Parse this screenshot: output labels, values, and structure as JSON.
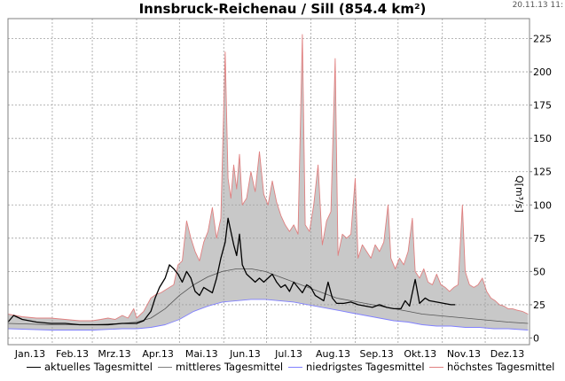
{
  "title": "Innsbruck-Reichenau / Sill (854.4 km²)",
  "timestamp": "20.11.13 11:",
  "colors": {
    "actual": "#000000",
    "mean": "#555555",
    "min": "#8080ff",
    "max": "#e08080",
    "band": "#c8c8c8",
    "grid": "#a0a0a0"
  },
  "chart_data": {
    "type": "line",
    "title": "Innsbruck-Reichenau / Sill (854.4 km²)",
    "ylabel": "Q[m³/s]",
    "xlabel": "",
    "ylim": [
      -5,
      240
    ],
    "yticks": [
      0,
      25,
      50,
      75,
      100,
      125,
      150,
      175,
      200,
      225
    ],
    "months": [
      "Jan.13",
      "Feb.13",
      "Mrz.13",
      "Apr.13",
      "Mai.13",
      "Jun.13",
      "Jul.13",
      "Aug.13",
      "Sep.13",
      "Okt.13",
      "Nov.13",
      "Dez.13"
    ],
    "legend_position": "bottom",
    "grid": true,
    "series": [
      {
        "name": "aktuelles Tagesmittel",
        "points": [
          [
            0,
            12
          ],
          [
            4,
            17
          ],
          [
            10,
            14
          ],
          [
            20,
            12
          ],
          [
            30,
            11
          ],
          [
            40,
            11
          ],
          [
            50,
            10
          ],
          [
            59,
            10
          ],
          [
            70,
            10
          ],
          [
            80,
            11
          ],
          [
            90,
            11
          ],
          [
            95,
            13
          ],
          [
            100,
            20
          ],
          [
            103,
            30
          ],
          [
            106,
            38
          ],
          [
            110,
            45
          ],
          [
            113,
            55
          ],
          [
            116,
            52
          ],
          [
            119,
            48
          ],
          [
            122,
            42
          ],
          [
            125,
            50
          ],
          [
            128,
            45
          ],
          [
            131,
            35
          ],
          [
            134,
            32
          ],
          [
            137,
            38
          ],
          [
            140,
            36
          ],
          [
            143,
            34
          ],
          [
            146,
            45
          ],
          [
            149,
            60
          ],
          [
            152,
            72
          ],
          [
            154,
            90
          ],
          [
            156,
            80
          ],
          [
            158,
            70
          ],
          [
            160,
            62
          ],
          [
            162,
            78
          ],
          [
            164,
            55
          ],
          [
            167,
            48
          ],
          [
            170,
            45
          ],
          [
            173,
            42
          ],
          [
            176,
            45
          ],
          [
            179,
            42
          ],
          [
            182,
            45
          ],
          [
            185,
            48
          ],
          [
            188,
            42
          ],
          [
            191,
            38
          ],
          [
            194,
            40
          ],
          [
            197,
            35
          ],
          [
            200,
            42
          ],
          [
            203,
            38
          ],
          [
            206,
            34
          ],
          [
            209,
            40
          ],
          [
            212,
            38
          ],
          [
            215,
            32
          ],
          [
            218,
            30
          ],
          [
            221,
            28
          ],
          [
            224,
            42
          ],
          [
            227,
            30
          ],
          [
            230,
            26
          ],
          [
            235,
            26
          ],
          [
            240,
            27
          ],
          [
            245,
            25
          ],
          [
            250,
            24
          ],
          [
            255,
            23
          ],
          [
            260,
            25
          ],
          [
            265,
            23
          ],
          [
            270,
            22
          ],
          [
            275,
            22
          ],
          [
            278,
            28
          ],
          [
            281,
            24
          ],
          [
            285,
            44
          ],
          [
            288,
            26
          ],
          [
            292,
            30
          ],
          [
            295,
            28
          ],
          [
            300,
            27
          ],
          [
            305,
            26
          ],
          [
            310,
            25
          ],
          [
            313,
            25
          ]
        ]
      },
      {
        "name": "mittleres Tagesmittel",
        "points": [
          [
            0,
            11
          ],
          [
            30,
            10
          ],
          [
            60,
            10
          ],
          [
            80,
            11
          ],
          [
            90,
            12
          ],
          [
            100,
            15
          ],
          [
            110,
            22
          ],
          [
            120,
            32
          ],
          [
            130,
            40
          ],
          [
            140,
            46
          ],
          [
            150,
            50
          ],
          [
            160,
            52
          ],
          [
            170,
            52
          ],
          [
            180,
            50
          ],
          [
            190,
            46
          ],
          [
            200,
            42
          ],
          [
            210,
            38
          ],
          [
            220,
            34
          ],
          [
            230,
            30
          ],
          [
            240,
            28
          ],
          [
            250,
            26
          ],
          [
            260,
            24
          ],
          [
            270,
            22
          ],
          [
            280,
            20
          ],
          [
            290,
            18
          ],
          [
            300,
            17
          ],
          [
            310,
            16
          ],
          [
            320,
            15
          ],
          [
            330,
            14
          ],
          [
            340,
            13
          ],
          [
            350,
            12
          ],
          [
            364,
            11
          ]
        ]
      },
      {
        "name": "niedrigstes Tagesmittel",
        "points": [
          [
            0,
            7
          ],
          [
            30,
            6
          ],
          [
            60,
            6
          ],
          [
            80,
            7
          ],
          [
            90,
            7
          ],
          [
            100,
            8
          ],
          [
            110,
            10
          ],
          [
            120,
            14
          ],
          [
            130,
            20
          ],
          [
            140,
            24
          ],
          [
            150,
            27
          ],
          [
            160,
            28
          ],
          [
            170,
            29
          ],
          [
            180,
            29
          ],
          [
            190,
            28
          ],
          [
            200,
            27
          ],
          [
            210,
            25
          ],
          [
            220,
            23
          ],
          [
            230,
            21
          ],
          [
            240,
            19
          ],
          [
            250,
            17
          ],
          [
            260,
            15
          ],
          [
            270,
            13
          ],
          [
            280,
            12
          ],
          [
            290,
            10
          ],
          [
            300,
            9
          ],
          [
            310,
            9
          ],
          [
            320,
            8
          ],
          [
            330,
            8
          ],
          [
            340,
            7
          ],
          [
            350,
            7
          ],
          [
            364,
            6
          ]
        ]
      },
      {
        "name": "höchstes Tagesmittel",
        "points": [
          [
            0,
            18
          ],
          [
            10,
            16
          ],
          [
            20,
            15
          ],
          [
            30,
            15
          ],
          [
            40,
            14
          ],
          [
            50,
            13
          ],
          [
            59,
            13
          ],
          [
            65,
            14
          ],
          [
            70,
            15
          ],
          [
            75,
            14
          ],
          [
            80,
            17
          ],
          [
            84,
            15
          ],
          [
            88,
            22
          ],
          [
            90,
            15
          ],
          [
            95,
            20
          ],
          [
            100,
            30
          ],
          [
            104,
            33
          ],
          [
            107,
            34
          ],
          [
            110,
            36
          ],
          [
            113,
            38
          ],
          [
            116,
            40
          ],
          [
            119,
            55
          ],
          [
            122,
            58
          ],
          [
            125,
            88
          ],
          [
            128,
            75
          ],
          [
            131,
            65
          ],
          [
            134,
            58
          ],
          [
            137,
            72
          ],
          [
            140,
            80
          ],
          [
            143,
            98
          ],
          [
            146,
            75
          ],
          [
            149,
            90
          ],
          [
            152,
            215
          ],
          [
            154,
            120
          ],
          [
            156,
            105
          ],
          [
            158,
            130
          ],
          [
            160,
            112
          ],
          [
            162,
            138
          ],
          [
            164,
            100
          ],
          [
            167,
            105
          ],
          [
            170,
            125
          ],
          [
            173,
            110
          ],
          [
            176,
            140
          ],
          [
            179,
            108
          ],
          [
            182,
            100
          ],
          [
            185,
            118
          ],
          [
            188,
            102
          ],
          [
            191,
            92
          ],
          [
            194,
            85
          ],
          [
            197,
            80
          ],
          [
            200,
            85
          ],
          [
            203,
            78
          ],
          [
            206,
            228
          ],
          [
            208,
            85
          ],
          [
            211,
            80
          ],
          [
            214,
            100
          ],
          [
            217,
            130
          ],
          [
            220,
            70
          ],
          [
            223,
            88
          ],
          [
            226,
            95
          ],
          [
            229,
            210
          ],
          [
            231,
            62
          ],
          [
            234,
            78
          ],
          [
            237,
            75
          ],
          [
            240,
            78
          ],
          [
            243,
            120
          ],
          [
            245,
            60
          ],
          [
            248,
            70
          ],
          [
            251,
            65
          ],
          [
            254,
            60
          ],
          [
            257,
            70
          ],
          [
            260,
            65
          ],
          [
            263,
            72
          ],
          [
            266,
            100
          ],
          [
            268,
            60
          ],
          [
            271,
            52
          ],
          [
            274,
            60
          ],
          [
            277,
            55
          ],
          [
            280,
            65
          ],
          [
            283,
            90
          ],
          [
            285,
            50
          ],
          [
            288,
            45
          ],
          [
            291,
            52
          ],
          [
            294,
            42
          ],
          [
            297,
            40
          ],
          [
            300,
            48
          ],
          [
            303,
            40
          ],
          [
            306,
            38
          ],
          [
            309,
            35
          ],
          [
            312,
            38
          ],
          [
            315,
            40
          ],
          [
            318,
            100
          ],
          [
            320,
            50
          ],
          [
            323,
            40
          ],
          [
            326,
            38
          ],
          [
            329,
            40
          ],
          [
            332,
            45
          ],
          [
            335,
            35
          ],
          [
            338,
            30
          ],
          [
            341,
            28
          ],
          [
            344,
            25
          ],
          [
            347,
            24
          ],
          [
            350,
            22
          ],
          [
            353,
            22
          ],
          [
            356,
            21
          ],
          [
            360,
            20
          ],
          [
            364,
            18
          ]
        ]
      }
    ]
  }
}
